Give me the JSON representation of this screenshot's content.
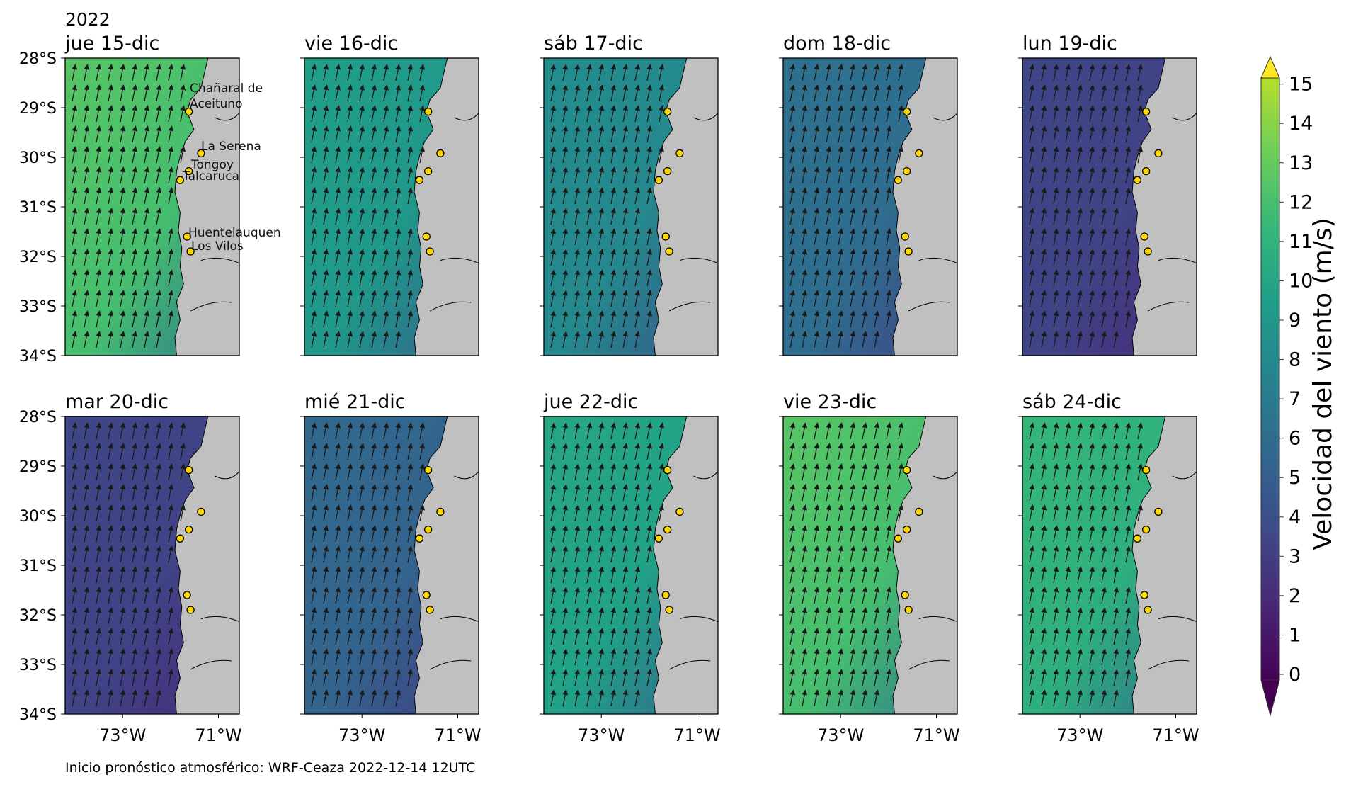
{
  "figure": {
    "year_label": "2022",
    "footer": "Inicio pronóstico atmosférico: WRF-Ceaza 2022-12-14 12UTC"
  },
  "axes": {
    "lat_ticks": [
      "28°S",
      "29°S",
      "30°S",
      "31°S",
      "32°S",
      "33°S",
      "34°S"
    ],
    "lon_ticks": [
      "73°W",
      "71°W"
    ]
  },
  "panels": [
    {
      "label": "jue 15-dic",
      "mean_speed": 10.5
    },
    {
      "label": "vie 16-dic",
      "mean_speed": 8.0
    },
    {
      "label": "sáb 17-dic",
      "mean_speed": 7.0
    },
    {
      "label": "dom 18-dic",
      "mean_speed": 5.3
    },
    {
      "label": "lun 19-dic",
      "mean_speed": 3.0
    },
    {
      "label": "mar 20-dic",
      "mean_speed": 3.0
    },
    {
      "label": "mié 21-dic",
      "mean_speed": 4.8
    },
    {
      "label": "jue 22-dic",
      "mean_speed": 8.5
    },
    {
      "label": "vie 23-dic",
      "mean_speed": 10.5
    },
    {
      "label": "sáb 24-dic",
      "mean_speed": 9.5
    }
  ],
  "locations": [
    "Chañaral de Aceituno",
    "La Serena",
    "Tongoy",
    "Talcaruca",
    "Huentelauquen",
    "Los Vilos"
  ],
  "colorbar": {
    "label": "Velocidad del viento (m/s)",
    "ticks": [
      "0",
      "1",
      "2",
      "3",
      "4",
      "5",
      "6",
      "7",
      "8",
      "9",
      "10",
      "11",
      "12",
      "13",
      "14",
      "15"
    ],
    "colormap": "viridis"
  },
  "colors": {
    "land": "#c0c0c0",
    "station_fill": "#ffd700",
    "arrow": "#1a1a1a"
  }
}
